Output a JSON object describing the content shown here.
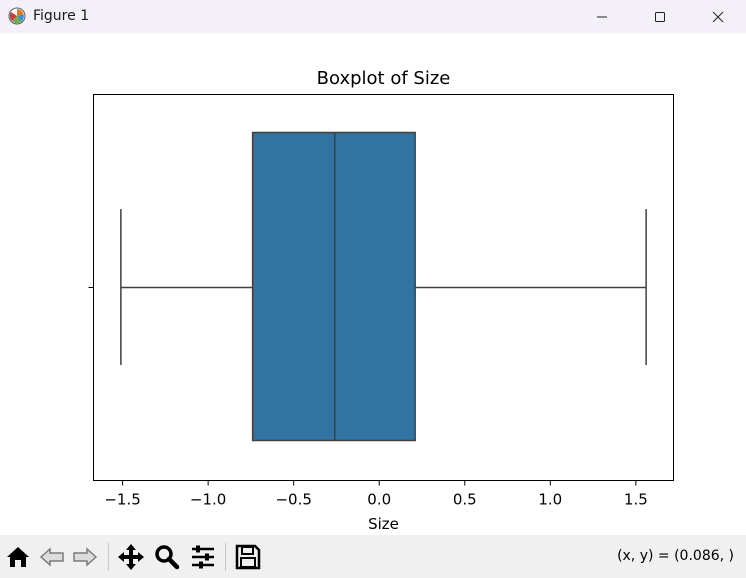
{
  "window": {
    "title": "Figure 1",
    "app_icon": "matplotlib-icon",
    "controls": [
      "minimize-icon",
      "maximize-icon",
      "close-icon"
    ]
  },
  "toolbar": {
    "buttons": [
      "home-icon",
      "back-icon",
      "forward-icon",
      "pan-icon",
      "zoom-icon",
      "configure-subplots-icon",
      "save-icon"
    ],
    "coords_text": "(x, y) = (0.086, )"
  },
  "chart_data": {
    "type": "box",
    "title": "Boxplot of Size",
    "xlabel": "Size",
    "ylabel": "",
    "orientation": "horizontal",
    "xlim": [
      -1.67,
      1.72
    ],
    "x_ticks": [
      -1.5,
      -1.0,
      -0.5,
      0.0,
      0.5,
      1.0,
      1.5
    ],
    "x_tick_labels": [
      "−1.5",
      "−1.0",
      "−0.5",
      "0.0",
      "0.5",
      "1.0",
      "1.5"
    ],
    "box": {
      "whisker_low": -1.51,
      "q1": -0.74,
      "median": -0.26,
      "q3": 0.21,
      "whisker_high": 1.56
    },
    "colors": {
      "box_fill": "#3274a1",
      "line": "#3f3f3f"
    },
    "grid": false
  }
}
